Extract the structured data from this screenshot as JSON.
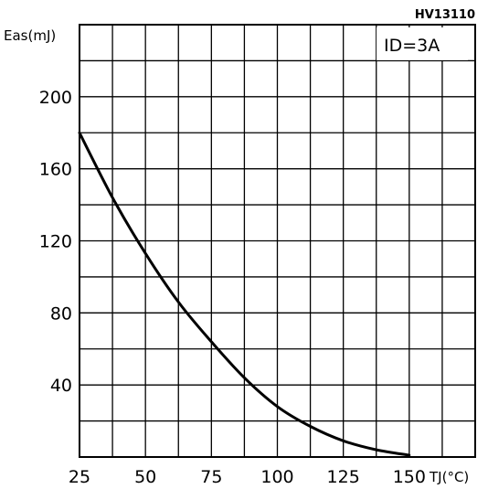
{
  "chart_data": {
    "type": "line",
    "figure_code": "HV13110",
    "ylabel": "Eas(mJ)",
    "xlabel": "TJ(°C)",
    "annotation": "ID=3A",
    "x_ticks": [
      "25",
      "50",
      "75",
      "100",
      "125",
      "150"
    ],
    "y_ticks": [
      "40",
      "80",
      "120",
      "160",
      "200"
    ],
    "xlim": [
      25,
      175
    ],
    "ylim": [
      0,
      240
    ],
    "grid": true,
    "series": [
      {
        "x": [
          25,
          37.5,
          50,
          62.5,
          75,
          87.5,
          100,
          112.5,
          125,
          137.5,
          150
        ],
        "y": [
          180,
          144,
          113,
          86,
          64,
          44,
          28,
          17,
          9,
          4,
          1
        ]
      }
    ]
  }
}
